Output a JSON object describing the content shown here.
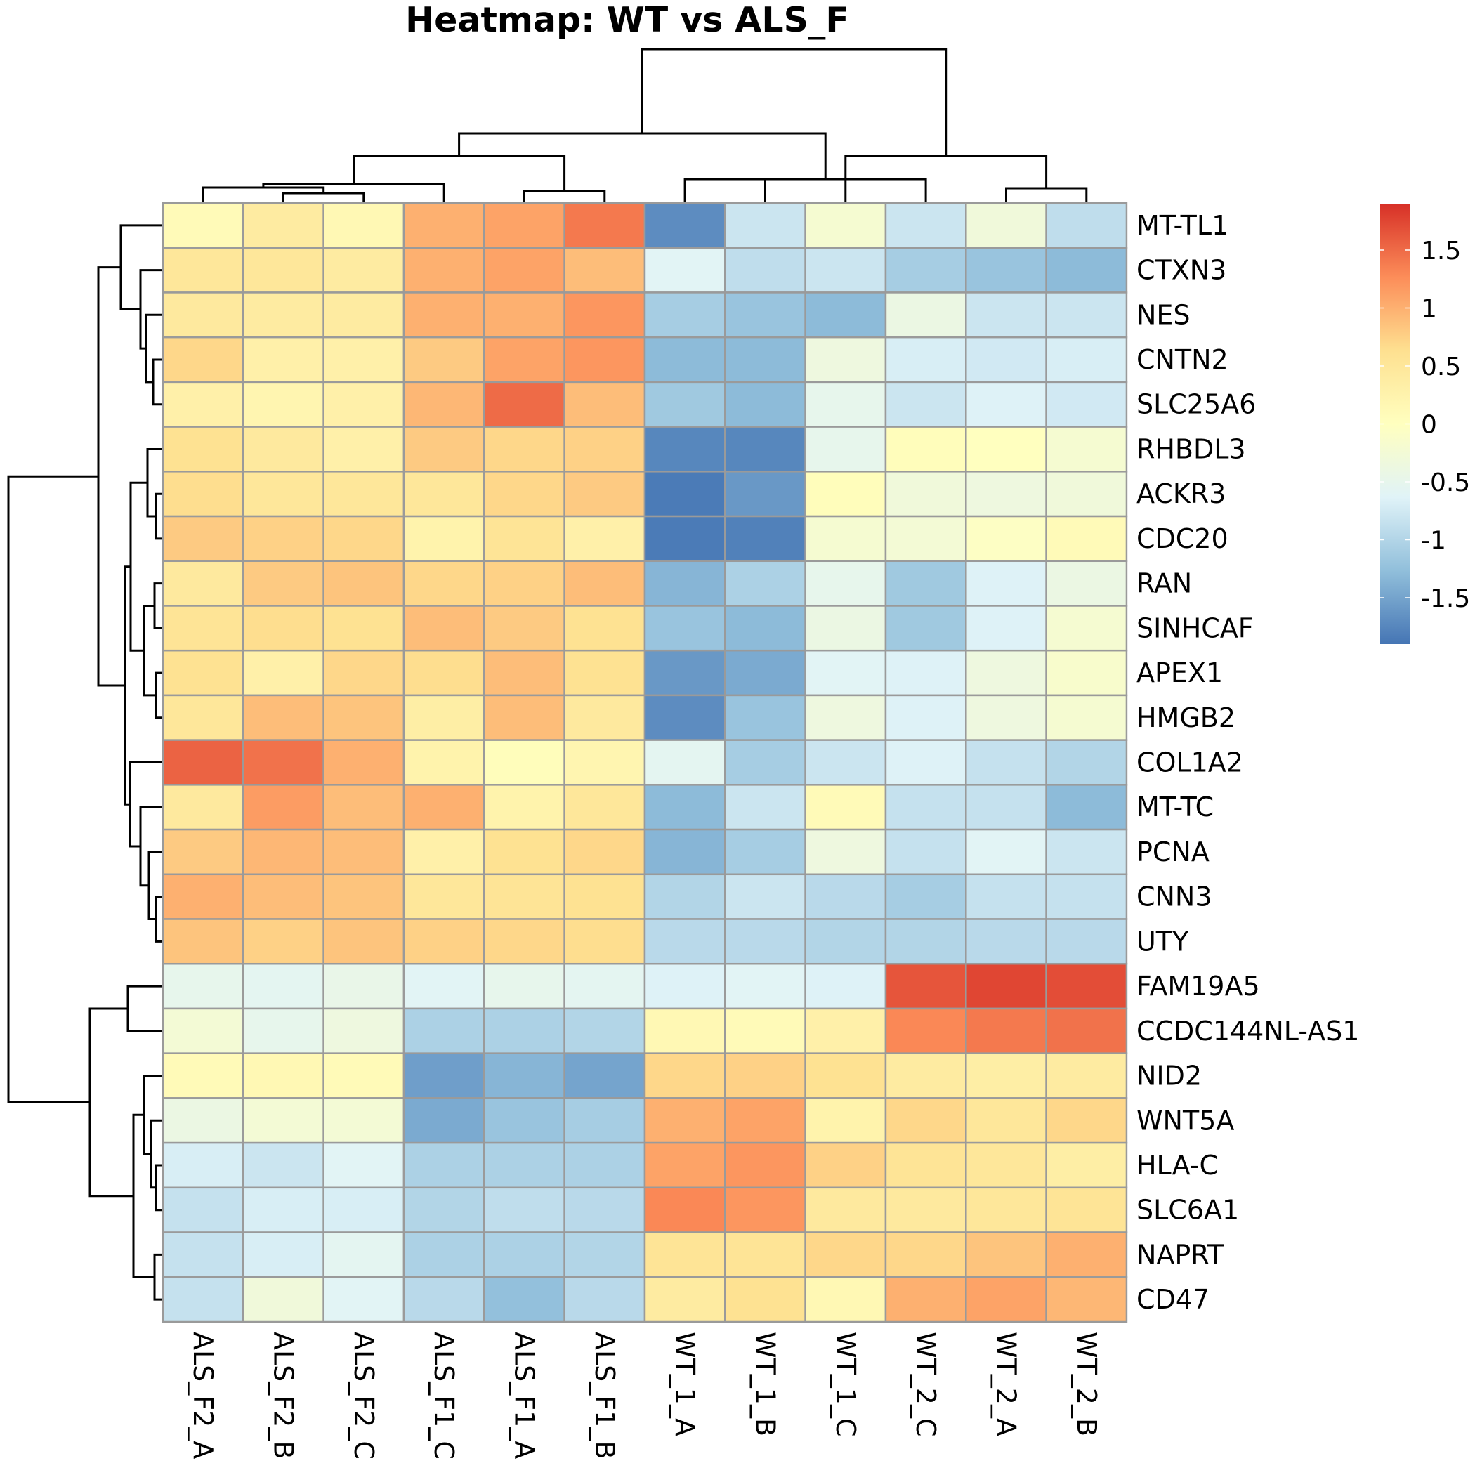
{
  "chart_data": {
    "type": "heatmap",
    "title": "Heatmap: WT vs ALS_F",
    "columns": [
      "ALS_F2_A",
      "ALS_F2_B",
      "ALS_F2_C",
      "ALS_F1_C",
      "ALS_F1_A",
      "ALS_F1_B",
      "WT_1_A",
      "WT_1_B",
      "WT_1_C",
      "WT_2_C",
      "WT_2_A",
      "WT_2_B"
    ],
    "rows": [
      "MT-TL1",
      "CTXN3",
      "NES",
      "CNTN2",
      "SLC25A6",
      "RHBDL3",
      "ACKR3",
      "CDC20",
      "RAN",
      "SINHCAF",
      "APEX1",
      "HMGB2",
      "COL1A2",
      "MT-TC",
      "PCNA",
      "CNN3",
      "UTY",
      "FAM19A5",
      "CCDC144NL-AS1",
      "NID2",
      "WNT5A",
      "HLA-C",
      "SLC6A1",
      "NAPRT",
      "CD47"
    ],
    "values": [
      [
        0.1,
        0.4,
        0.15,
        1.0,
        1.1,
        1.4,
        -1.7,
        -0.8,
        -0.2,
        -0.8,
        -0.3,
        -0.9
      ],
      [
        0.5,
        0.5,
        0.4,
        1.0,
        1.1,
        0.9,
        -0.6,
        -0.9,
        -0.8,
        -1.1,
        -1.2,
        -1.3
      ],
      [
        0.45,
        0.4,
        0.4,
        1.0,
        1.0,
        1.2,
        -1.1,
        -1.2,
        -1.3,
        -0.4,
        -0.8,
        -0.8
      ],
      [
        0.7,
        0.3,
        0.3,
        0.8,
        1.1,
        1.2,
        -1.3,
        -1.3,
        -0.35,
        -0.7,
        -0.75,
        -0.7
      ],
      [
        0.3,
        0.2,
        0.3,
        0.95,
        1.5,
        0.9,
        -1.15,
        -1.3,
        -0.5,
        -0.8,
        -0.65,
        -0.75
      ],
      [
        0.6,
        0.45,
        0.3,
        0.8,
        0.7,
        0.75,
        -1.75,
        -1.75,
        -0.5,
        0.05,
        0.0,
        -0.2
      ],
      [
        0.65,
        0.5,
        0.5,
        0.5,
        0.7,
        0.8,
        -1.85,
        -1.6,
        0.05,
        -0.3,
        -0.35,
        -0.3
      ],
      [
        0.8,
        0.75,
        0.7,
        0.25,
        0.55,
        0.3,
        -1.85,
        -1.8,
        -0.2,
        -0.25,
        -0.05,
        0.1
      ],
      [
        0.45,
        0.8,
        0.85,
        0.7,
        0.75,
        0.9,
        -1.35,
        -1.05,
        -0.5,
        -1.15,
        -0.65,
        -0.4
      ],
      [
        0.55,
        0.65,
        0.6,
        0.9,
        0.8,
        0.6,
        -1.2,
        -1.3,
        -0.4,
        -1.15,
        -0.65,
        -0.2
      ],
      [
        0.6,
        0.3,
        0.7,
        0.65,
        0.9,
        0.6,
        -1.6,
        -1.45,
        -0.6,
        -0.65,
        -0.35,
        -0.15
      ],
      [
        0.5,
        0.9,
        0.85,
        0.35,
        0.9,
        0.45,
        -1.7,
        -1.2,
        -0.35,
        -0.65,
        -0.35,
        -0.2
      ],
      [
        1.55,
        1.45,
        1.0,
        0.25,
        0.05,
        0.2,
        -0.55,
        -1.1,
        -0.8,
        -0.65,
        -0.85,
        -1.0
      ],
      [
        0.45,
        1.15,
        0.9,
        1.0,
        0.25,
        0.5,
        -1.3,
        -0.8,
        0.1,
        -0.85,
        -0.85,
        -1.3
      ],
      [
        0.8,
        0.95,
        0.9,
        0.3,
        0.6,
        0.7,
        -1.35,
        -1.1,
        -0.35,
        -0.85,
        -0.6,
        -0.8
      ],
      [
        1.0,
        0.9,
        0.85,
        0.5,
        0.55,
        0.6,
        -1.0,
        -0.8,
        -0.95,
        -1.1,
        -0.85,
        -0.85
      ],
      [
        0.85,
        0.75,
        0.85,
        0.75,
        0.7,
        0.65,
        -0.95,
        -0.95,
        -1.0,
        -1.0,
        -0.95,
        -0.95
      ],
      [
        -0.5,
        -0.55,
        -0.45,
        -0.6,
        -0.5,
        -0.55,
        -0.65,
        -0.6,
        -0.65,
        1.65,
        1.75,
        1.7
      ],
      [
        -0.25,
        -0.5,
        -0.35,
        -1.05,
        -1.05,
        -1.0,
        0.15,
        0.1,
        0.3,
        1.3,
        1.4,
        1.45
      ],
      [
        0.1,
        0.15,
        0.1,
        -1.55,
        -1.35,
        -1.5,
        0.7,
        0.75,
        0.6,
        0.4,
        0.35,
        0.4
      ],
      [
        -0.4,
        -0.25,
        -0.25,
        -1.45,
        -1.2,
        -1.1,
        1.0,
        1.1,
        0.25,
        0.7,
        0.5,
        0.7
      ],
      [
        -0.7,
        -0.8,
        -0.6,
        -1.05,
        -1.05,
        -1.05,
        1.1,
        1.2,
        0.75,
        0.55,
        0.5,
        0.35
      ],
      [
        -0.85,
        -0.7,
        -0.7,
        -1.0,
        -0.9,
        -0.95,
        1.3,
        1.2,
        0.45,
        0.45,
        0.5,
        0.55
      ],
      [
        -0.85,
        -0.7,
        -0.55,
        -1.05,
        -1.05,
        -1.0,
        0.55,
        0.55,
        0.7,
        0.7,
        0.85,
        1.0
      ],
      [
        -0.85,
        -0.3,
        -0.6,
        -0.95,
        -1.25,
        -0.95,
        0.4,
        0.6,
        0.15,
        1.0,
        1.1,
        0.95
      ]
    ],
    "color_scale": {
      "min": -1.9,
      "max": 1.9,
      "colors": [
        "#4575b4",
        "#91bfdb",
        "#e0f3f8",
        "#ffffbf",
        "#fee090",
        "#fc8d59",
        "#d73027"
      ]
    },
    "legend": {
      "ticks": [
        1.5,
        1,
        0.5,
        0,
        -0.5,
        -1,
        -1.5
      ],
      "tick_labels": [
        "1.5",
        "1",
        "0.5",
        "0",
        "-0.5",
        "-1",
        "-1.5"
      ],
      "position": "right"
    }
  }
}
